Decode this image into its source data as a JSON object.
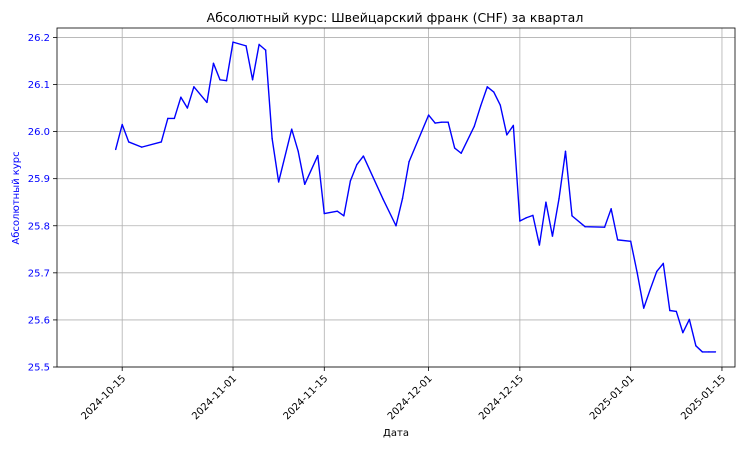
{
  "chart_data": {
    "type": "line",
    "title": "Абсолютный курс: Швейцарский франк (CHF) за квартал",
    "xlabel": "Дата",
    "ylabel": "Абсолютный курс",
    "xlim": [
      "2024-10-05",
      "2025-01-17"
    ],
    "ylim": [
      25.5,
      26.22
    ],
    "grid": true,
    "colors": {
      "line": "#0000ff",
      "ytick": "#0000ff",
      "ylabel": "#0000ff"
    },
    "x_ticks": [
      "2024-10-15",
      "2024-11-01",
      "2024-11-15",
      "2024-12-01",
      "2024-12-15",
      "2025-01-01",
      "2025-01-15"
    ],
    "y_ticks": [
      "25.5",
      "25.6",
      "25.7",
      "25.8",
      "25.9",
      "26.0",
      "26.1",
      "26.2"
    ],
    "series": [
      {
        "name": "",
        "x": [
          "2024-10-14",
          "2024-10-15",
          "2024-10-16",
          "2024-10-18",
          "2024-10-21",
          "2024-10-22",
          "2024-10-23",
          "2024-10-24",
          "2024-10-25",
          "2024-10-26",
          "2024-10-28",
          "2024-10-29",
          "2024-10-30",
          "2024-10-31",
          "2024-11-01",
          "2024-11-03",
          "2024-11-04",
          "2024-11-05",
          "2024-11-06",
          "2024-11-07",
          "2024-11-08",
          "2024-11-10",
          "2024-11-11",
          "2024-11-12",
          "2024-11-14",
          "2024-11-15",
          "2024-11-17",
          "2024-11-18",
          "2024-11-19",
          "2024-11-20",
          "2024-11-21",
          "2024-11-24",
          "2024-11-26",
          "2024-11-27",
          "2024-11-28",
          "2024-12-01",
          "2024-12-02",
          "2024-12-03",
          "2024-12-04",
          "2024-12-05",
          "2024-12-06",
          "2024-12-08",
          "2024-12-09",
          "2024-12-10",
          "2024-12-11",
          "2024-12-12",
          "2024-12-13",
          "2024-12-14",
          "2024-12-15",
          "2024-12-16",
          "2024-12-17",
          "2024-12-18",
          "2024-12-19",
          "2024-12-20",
          "2024-12-21",
          "2024-12-22",
          "2024-12-23",
          "2024-12-25",
          "2024-12-28",
          "2024-12-29",
          "2024-12-30",
          "2025-01-01",
          "2025-01-02",
          "2025-01-03",
          "2025-01-04",
          "2025-01-05",
          "2025-01-06",
          "2025-01-07",
          "2025-01-08",
          "2025-01-09",
          "2025-01-10",
          "2025-01-11",
          "2025-01-12",
          "2025-01-13",
          "2025-01-14"
        ],
        "values": [
          25.962,
          26.015,
          25.978,
          25.967,
          25.978,
          26.028,
          26.028,
          26.073,
          26.05,
          26.095,
          26.062,
          26.145,
          26.11,
          26.108,
          26.19,
          26.182,
          26.11,
          26.185,
          26.173,
          25.985,
          25.893,
          26.005,
          25.958,
          25.888,
          25.949,
          25.826,
          25.831,
          25.821,
          25.895,
          25.93,
          25.948,
          25.857,
          25.8,
          25.858,
          25.936,
          26.035,
          26.018,
          26.02,
          26.02,
          25.965,
          25.954,
          26.011,
          26.055,
          26.095,
          26.084,
          26.056,
          25.993,
          26.013,
          25.81,
          25.817,
          25.822,
          25.759,
          25.85,
          25.778,
          25.857,
          25.958,
          25.821,
          25.798,
          25.797,
          25.836,
          25.77,
          25.767,
          25.7,
          25.625,
          25.665,
          25.703,
          25.72,
          25.62,
          25.618,
          25.573,
          25.601,
          25.545,
          25.532,
          25.532,
          25.532
        ]
      }
    ]
  }
}
